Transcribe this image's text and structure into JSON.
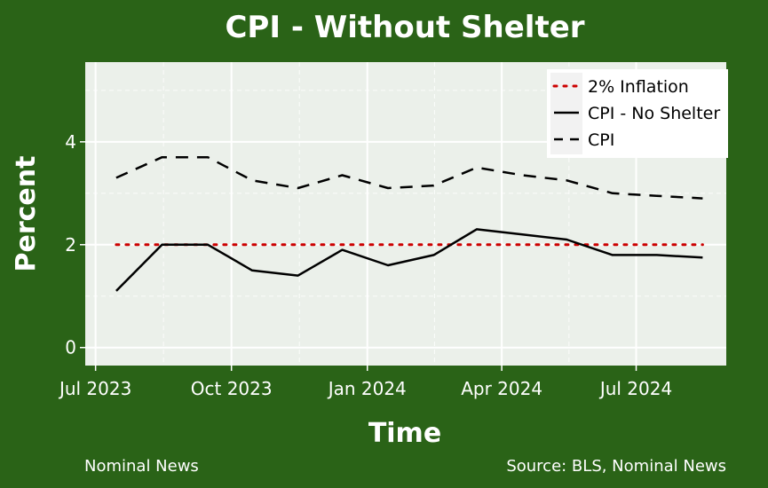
{
  "colors": {
    "background": "#2a6317",
    "panel": "#ebf0ea",
    "grid": "#ffffff",
    "text": "#ffffff",
    "inflation_line": "#cc0000",
    "series_line": "#000000"
  },
  "footer": {
    "left": "Nominal News",
    "right": "Source: BLS, Nominal News"
  },
  "chart_data": {
    "type": "line",
    "title": "CPI - Without Shelter",
    "xlabel": "Time",
    "ylabel": "Percent",
    "xlim": [
      "2023-06-24",
      "2024-08-31"
    ],
    "ylim": [
      -0.35,
      5.55
    ],
    "x_ticks": [
      {
        "date": "2023-07-01",
        "label": "Jul 2023"
      },
      {
        "date": "2023-10-01",
        "label": "Oct 2023"
      },
      {
        "date": "2024-01-01",
        "label": "Jan 2024"
      },
      {
        "date": "2024-04-01",
        "label": "Apr 2024"
      },
      {
        "date": "2024-07-01",
        "label": "Jul 2024"
      }
    ],
    "y_ticks": [
      0,
      2,
      4
    ],
    "grid": true,
    "legend_position": "top-right",
    "legend": [
      {
        "label": "2% Inflation",
        "style": "dotted-red"
      },
      {
        "label": "CPI - No Shelter",
        "style": "solid-black"
      },
      {
        "label": "CPI",
        "style": "dashed-black"
      }
    ],
    "series": [
      {
        "name": "2% Inflation",
        "style": "dotted",
        "x": [
          "2023-07-15",
          "2024-08-15"
        ],
        "y": [
          2.0,
          2.0
        ]
      },
      {
        "name": "CPI - No Shelter",
        "style": "solid",
        "x": [
          "2023-07-15",
          "2023-08-15",
          "2023-09-15",
          "2023-10-15",
          "2023-11-15",
          "2023-12-15",
          "2024-01-15",
          "2024-02-15",
          "2024-03-15",
          "2024-04-15",
          "2024-05-15",
          "2024-06-15",
          "2024-07-15",
          "2024-08-15"
        ],
        "y": [
          1.1,
          2.0,
          2.0,
          1.5,
          1.4,
          1.9,
          1.6,
          1.8,
          2.3,
          2.2,
          2.1,
          1.8,
          1.8,
          1.75
        ]
      },
      {
        "name": "CPI",
        "style": "dashed",
        "x": [
          "2023-07-15",
          "2023-08-15",
          "2023-09-15",
          "2023-10-15",
          "2023-11-15",
          "2023-12-15",
          "2024-01-15",
          "2024-02-15",
          "2024-03-15",
          "2024-04-15",
          "2024-05-15",
          "2024-06-15",
          "2024-07-15",
          "2024-08-15"
        ],
        "y": [
          3.3,
          3.7,
          3.7,
          3.25,
          3.1,
          3.35,
          3.1,
          3.15,
          3.5,
          3.35,
          3.25,
          3.0,
          2.95,
          2.9
        ]
      }
    ]
  }
}
